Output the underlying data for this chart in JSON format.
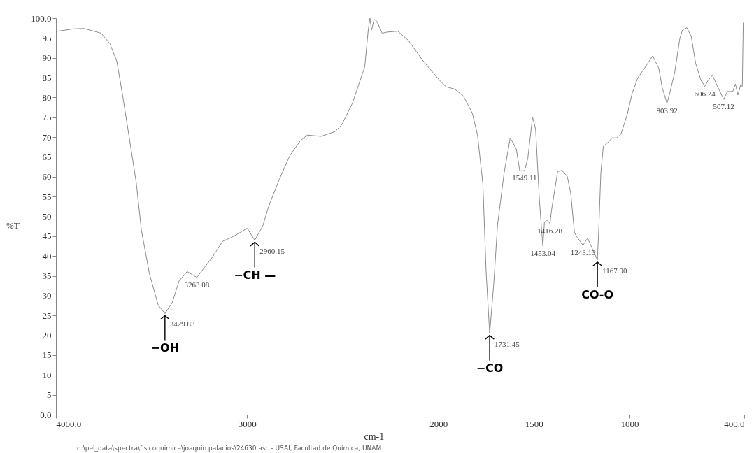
{
  "chart_data": {
    "type": "line",
    "xlabel": "cm-1",
    "ylabel": "%T",
    "color": "#8c8c8c",
    "grid": false,
    "x": [
      3991,
      3909,
      3854,
      3763,
      3717,
      3681,
      3653,
      3617,
      3580,
      3553,
      3511,
      3465,
      3429.83,
      3392,
      3356,
      3314,
      3263.08,
      3182,
      3128,
      3073,
      3000,
      2960.15,
      2918,
      2887,
      2832,
      2777,
      2723,
      2686,
      2613,
      2540,
      2504,
      2449,
      2385,
      2367,
      2358,
      2349,
      2336,
      2321,
      2294,
      2266,
      2212,
      2157,
      2084,
      1997,
      1960,
      1914,
      1868,
      1822,
      1795,
      1767,
      1750,
      1731.45,
      1710,
      1690,
      1656,
      1624,
      1592,
      1574,
      1549.11,
      1532,
      1507,
      1491,
      1472,
      1459,
      1453.04,
      1445,
      1431,
      1416.28,
      1408,
      1390,
      1376,
      1353,
      1325,
      1307,
      1288,
      1279,
      1243.13,
      1219,
      1196,
      1167.9,
      1160,
      1150,
      1137,
      1114,
      1091,
      1068,
      1045,
      1012,
      985,
      957,
      921,
      879,
      847,
      829,
      803.92,
      792,
      764,
      737,
      723,
      700,
      677,
      654,
      626,
      606.24,
      589,
      566,
      543,
      507.12,
      488,
      460,
      446,
      433,
      419,
      410,
      405
    ],
    "values": [
      96.7,
      97.3,
      97.4,
      96.2,
      93.5,
      89,
      81,
      70,
      58.5,
      46.5,
      35.5,
      27.6,
      25.5,
      28.2,
      33.7,
      36.1,
      34.6,
      39.7,
      43.7,
      44.9,
      47,
      44,
      47.6,
      52.6,
      59.3,
      65.3,
      69,
      70.5,
      70.2,
      71.4,
      73.2,
      78.6,
      87.7,
      96.8,
      100,
      97,
      99.7,
      99.2,
      96.2,
      96.5,
      96.7,
      94.4,
      89.5,
      84.5,
      82.7,
      82.1,
      80.3,
      76,
      70.5,
      58.2,
      36,
      20.5,
      33,
      48,
      60.9,
      69.8,
      67,
      61.5,
      61.5,
      64.6,
      75.1,
      72,
      54.7,
      46,
      42.5,
      48.5,
      49.1,
      48.2,
      51.5,
      57,
      61.3,
      61.6,
      60,
      55.7,
      46,
      45.1,
      42.7,
      44.5,
      42,
      39,
      47.6,
      60.9,
      67.7,
      68.6,
      69.8,
      69.8,
      70.7,
      75.7,
      81.2,
      84.9,
      87.4,
      90.5,
      87.4,
      82.5,
      78.5,
      80.6,
      86.2,
      94.8,
      97,
      97.6,
      95.4,
      88.6,
      84.3,
      82.8,
      84.3,
      85.6,
      83.1,
      79.5,
      81.5,
      81.5,
      83.4,
      80.6,
      83.1,
      82.8,
      98.8
    ],
    "xlim": [
      4000,
      400
    ],
    "xticks": [
      {
        "value": 4000,
        "label": "4000.0"
      },
      3000,
      2000,
      1500,
      1000,
      {
        "value": 400,
        "label": "400.0"
      }
    ],
    "ylim": [
      0,
      100
    ],
    "yticks": [
      {
        "value": 0,
        "label": "0.0"
      },
      5,
      10,
      15,
      20,
      25,
      30,
      35,
      40,
      45,
      50,
      55,
      60,
      65,
      70,
      75,
      80,
      85,
      90,
      95,
      {
        "value": 100,
        "label": "100.0"
      }
    ],
    "annotations": [
      {
        "text": "3429.83",
        "x": 3429.83,
        "y": 25.5
      },
      {
        "text": "3263.08",
        "x": 3263.08,
        "y": 34.6
      },
      {
        "text": "2960.15",
        "x": 2960.15,
        "y": 44
      },
      {
        "text": "1731.45",
        "x": 1731.45,
        "y": 20.5
      },
      {
        "text": "1549.11",
        "x": 1549.11,
        "y": 61.5
      },
      {
        "text": "1453.04",
        "x": 1453.04,
        "y": 42.5
      },
      {
        "text": "1416.28",
        "x": 1416.28,
        "y": 48.2
      },
      {
        "text": "1243.13",
        "x": 1243.13,
        "y": 42.7
      },
      {
        "text": "1167.90",
        "x": 1167.9,
        "y": 39
      },
      {
        "text": "803.92",
        "x": 803.92,
        "y": 78.5
      },
      {
        "text": "606.24",
        "x": 606.24,
        "y": 82.8
      },
      {
        "text": "507.12",
        "x": 507.12,
        "y": 79.5
      },
      {
        "text": "−OH",
        "x": 3429.83,
        "y": 25.5
      },
      {
        "text": "−CH —",
        "x": 2960.15,
        "y": 44
      },
      {
        "text": "−CO",
        "x": 1731.45,
        "y": 20.5
      },
      {
        "text": "CO-O",
        "x": 1167.9,
        "y": 39
      },
      "d:\\pel_data\\spectra\\fisicoquimica\\joaquin palacios\\24630.asc - USAI, Facultad de Química, UNAM"
    ]
  }
}
